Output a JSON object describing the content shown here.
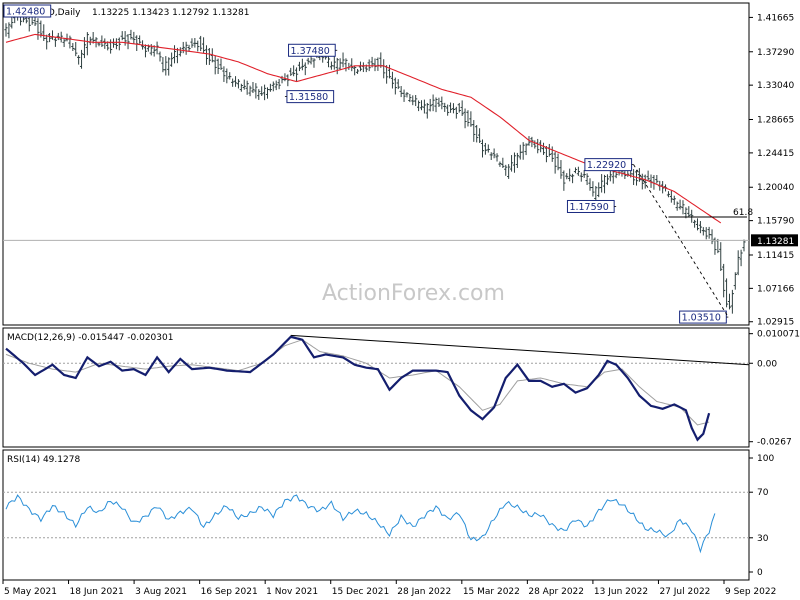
{
  "window": {
    "symbol": "GBPUSD,Daily",
    "ohlc": "1.13225 1.13423 1.12792 1.13281",
    "watermark": "ActionForex.com"
  },
  "chart_data": [
    {
      "type": "candlestick",
      "panel": "price",
      "ylim": [
        1.025,
        1.435
      ],
      "yticks": [
        "1.41665",
        "1.37290",
        "1.33040",
        "1.28665",
        "1.24415",
        "1.20040",
        "1.15790",
        "1.11415",
        "1.07166",
        "1.02915"
      ],
      "current_price": "1.13281",
      "close_path": [
        [
          0,
          1.4
        ],
        [
          1.5,
          1.42
        ],
        [
          3,
          1.415
        ],
        [
          5,
          1.41
        ],
        [
          6.5,
          1.39
        ],
        [
          9,
          1.39
        ],
        [
          11,
          1.385
        ],
        [
          12.5,
          1.36
        ],
        [
          14,
          1.39
        ],
        [
          16,
          1.385
        ],
        [
          18,
          1.38
        ],
        [
          20,
          1.39
        ],
        [
          22,
          1.39
        ],
        [
          24,
          1.375
        ],
        [
          26,
          1.375
        ],
        [
          27,
          1.35
        ],
        [
          29,
          1.37
        ],
        [
          31,
          1.38
        ],
        [
          33,
          1.385
        ],
        [
          35,
          1.365
        ],
        [
          37,
          1.35
        ],
        [
          38,
          1.34
        ],
        [
          40,
          1.33
        ],
        [
          42,
          1.325
        ],
        [
          44,
          1.32
        ],
        [
          46,
          1.33
        ],
        [
          48,
          1.34
        ],
        [
          50,
          1.35
        ],
        [
          52,
          1.36
        ],
        [
          54,
          1.37
        ],
        [
          56,
          1.355
        ],
        [
          58,
          1.36
        ],
        [
          60,
          1.35
        ],
        [
          62,
          1.355
        ],
        [
          64,
          1.36
        ],
        [
          66,
          1.34
        ],
        [
          68,
          1.32
        ],
        [
          70,
          1.31
        ],
        [
          72,
          1.3
        ],
        [
          74,
          1.31
        ],
        [
          76,
          1.3
        ],
        [
          78,
          1.3
        ],
        [
          80,
          1.28
        ],
        [
          82,
          1.25
        ],
        [
          84,
          1.24
        ],
        [
          86,
          1.22
        ],
        [
          88,
          1.24
        ],
        [
          90,
          1.26
        ],
        [
          92,
          1.25
        ],
        [
          94,
          1.24
        ],
        [
          96,
          1.21
        ],
        [
          98,
          1.22
        ],
        [
          100,
          1.21
        ],
        [
          101,
          1.19
        ],
        [
          103,
          1.21
        ],
        [
          105,
          1.22
        ],
        [
          107,
          1.22
        ],
        [
          109,
          1.21
        ],
        [
          111,
          1.21
        ],
        [
          113,
          1.2
        ],
        [
          115,
          1.18
        ],
        [
          117,
          1.17
        ],
        [
          119,
          1.15
        ],
        [
          121,
          1.14
        ],
        [
          122.5,
          1.12
        ],
        [
          123.5,
          1.075
        ],
        [
          124.3,
          1.04
        ],
        [
          125,
          1.07
        ],
        [
          126,
          1.11
        ],
        [
          127,
          1.13
        ]
      ],
      "ma_path": [
        [
          0,
          1.385
        ],
        [
          5,
          1.395
        ],
        [
          10,
          1.39
        ],
        [
          15,
          1.385
        ],
        [
          20,
          1.385
        ],
        [
          25,
          1.38
        ],
        [
          30,
          1.375
        ],
        [
          35,
          1.37
        ],
        [
          40,
          1.36
        ],
        [
          45,
          1.345
        ],
        [
          50,
          1.335
        ],
        [
          55,
          1.345
        ],
        [
          60,
          1.355
        ],
        [
          65,
          1.355
        ],
        [
          70,
          1.34
        ],
        [
          75,
          1.325
        ],
        [
          80,
          1.315
        ],
        [
          85,
          1.29
        ],
        [
          90,
          1.26
        ],
        [
          95,
          1.245
        ],
        [
          100,
          1.23
        ],
        [
          105,
          1.22
        ],
        [
          110,
          1.21
        ],
        [
          115,
          1.195
        ],
        [
          120,
          1.17
        ],
        [
          123,
          1.155
        ]
      ],
      "levels": [
        {
          "label": "1.42480",
          "x": 1,
          "price": 1.4248,
          "pos": "inline"
        },
        {
          "label": "1.37480",
          "x": 57,
          "price": 1.3748,
          "pos": "left"
        },
        {
          "label": "1.31580",
          "x": 48,
          "price": 1.3158,
          "pos": "right"
        },
        {
          "label": "1.22920",
          "x": 108,
          "price": 1.2292,
          "pos": "left"
        },
        {
          "label": "1.17590",
          "x": 105,
          "price": 1.1759,
          "pos": "left"
        },
        {
          "label": "1.03510",
          "x": 124.3,
          "price": 1.0351,
          "pos": "left"
        }
      ],
      "fib_label": "61.8",
      "fib_price": 1.1625,
      "dashed_line": [
        [
          108,
          1.2292
        ],
        [
          124.3,
          1.0351
        ]
      ],
      "x_tick_labels": [
        "5 May 2021",
        "18 Jun 2021",
        "3 Aug 2021",
        "16 Sep 2021",
        "1 Nov 2021",
        "15 Dec 2021",
        "28 Jan 2022",
        "15 Mar 2022",
        "28 Apr 2022",
        "13 Jun 2022",
        "27 Jul 2022",
        "9 Sep 2022"
      ]
    },
    {
      "type": "line",
      "panel": "macd",
      "title": "MACD(12,26,9) -0.015447 -0.020301",
      "ylim": [
        -0.0285,
        0.012
      ],
      "yticks": [
        "0.010071",
        "0.00",
        "-0.0267"
      ],
      "macd_path": [
        [
          0,
          0.005
        ],
        [
          3,
          0.0
        ],
        [
          5,
          -0.004
        ],
        [
          8,
          -0.0005
        ],
        [
          10,
          -0.004
        ],
        [
          12,
          -0.005
        ],
        [
          14,
          0.002
        ],
        [
          16,
          -0.001
        ],
        [
          18,
          0.0005
        ],
        [
          20,
          -0.0025
        ],
        [
          22,
          -0.002
        ],
        [
          24,
          -0.004
        ],
        [
          26,
          0.002
        ],
        [
          28,
          -0.003
        ],
        [
          30,
          0.0015
        ],
        [
          32,
          -0.002
        ],
        [
          35,
          -0.0015
        ],
        [
          38,
          -0.0025
        ],
        [
          42,
          -0.003
        ],
        [
          46,
          0.003
        ],
        [
          49,
          0.009
        ],
        [
          51,
          0.008
        ],
        [
          53,
          0.002
        ],
        [
          55,
          0.003
        ],
        [
          58,
          0.002
        ],
        [
          60,
          -0.0005
        ],
        [
          62,
          -0.0015
        ],
        [
          64,
          -0.002
        ],
        [
          66,
          -0.009
        ],
        [
          68,
          -0.005
        ],
        [
          70,
          -0.0025
        ],
        [
          74,
          -0.0025
        ],
        [
          76,
          -0.003
        ],
        [
          78,
          -0.011
        ],
        [
          80,
          -0.016
        ],
        [
          82,
          -0.019
        ],
        [
          84,
          -0.015
        ],
        [
          86,
          -0.005
        ],
        [
          88,
          -0.0005
        ],
        [
          90,
          -0.006
        ],
        [
          92,
          -0.006
        ],
        [
          94,
          -0.008
        ],
        [
          96,
          -0.007
        ],
        [
          98,
          -0.01
        ],
        [
          100,
          -0.0085
        ],
        [
          102,
          -0.004
        ],
        [
          103.5,
          0.0008
        ],
        [
          105,
          -0.0005
        ],
        [
          107,
          -0.005
        ],
        [
          109,
          -0.011
        ],
        [
          111,
          -0.0145
        ],
        [
          113,
          -0.0155
        ],
        [
          115,
          -0.014
        ],
        [
          117,
          -0.016
        ],
        [
          118,
          -0.022
        ],
        [
          119,
          -0.026
        ],
        [
          120,
          -0.024
        ],
        [
          121,
          -0.017
        ]
      ],
      "signal_path": [
        [
          0,
          0.003
        ],
        [
          4,
          0.0
        ],
        [
          8,
          -0.002
        ],
        [
          12,
          -0.003
        ],
        [
          16,
          0.0
        ],
        [
          20,
          -0.001
        ],
        [
          24,
          -0.002
        ],
        [
          28,
          -0.001
        ],
        [
          32,
          -0.0005
        ],
        [
          36,
          -0.0015
        ],
        [
          40,
          -0.0025
        ],
        [
          44,
          0.0
        ],
        [
          48,
          0.006
        ],
        [
          51,
          0.008
        ],
        [
          54,
          0.004
        ],
        [
          58,
          0.0025
        ],
        [
          62,
          0.0
        ],
        [
          66,
          -0.005
        ],
        [
          70,
          -0.004
        ],
        [
          74,
          -0.0025
        ],
        [
          78,
          -0.008
        ],
        [
          82,
          -0.016
        ],
        [
          85,
          -0.014
        ],
        [
          88,
          -0.006
        ],
        [
          92,
          -0.005
        ],
        [
          96,
          -0.007
        ],
        [
          100,
          -0.008
        ],
        [
          103,
          -0.003
        ],
        [
          106,
          -0.002
        ],
        [
          109,
          -0.008
        ],
        [
          112,
          -0.013
        ],
        [
          116,
          -0.015
        ],
        [
          119,
          -0.021
        ],
        [
          121,
          -0.02
        ]
      ],
      "trendline": [
        [
          49,
          0.0095
        ],
        [
          122,
          -0.0005
        ]
      ]
    },
    {
      "type": "line",
      "panel": "rsi",
      "title": "RSI(14) 49.1278",
      "ylim": [
        0,
        100
      ],
      "yticks": [
        "100",
        "70",
        "30",
        "0"
      ],
      "rsi_path": [
        [
          0,
          55
        ],
        [
          2,
          65
        ],
        [
          4,
          55
        ],
        [
          6,
          48
        ],
        [
          8,
          60
        ],
        [
          10,
          52
        ],
        [
          12,
          40
        ],
        [
          14,
          55
        ],
        [
          16,
          50
        ],
        [
          18,
          62
        ],
        [
          20,
          58
        ],
        [
          22,
          45
        ],
        [
          24,
          50
        ],
        [
          26,
          58
        ],
        [
          28,
          44
        ],
        [
          30,
          50
        ],
        [
          32,
          55
        ],
        [
          34,
          40
        ],
        [
          36,
          52
        ],
        [
          38,
          60
        ],
        [
          40,
          48
        ],
        [
          42,
          50
        ],
        [
          44,
          55
        ],
        [
          46,
          48
        ],
        [
          48,
          62
        ],
        [
          50,
          68
        ],
        [
          52,
          60
        ],
        [
          54,
          55
        ],
        [
          56,
          60
        ],
        [
          58,
          45
        ],
        [
          60,
          52
        ],
        [
          62,
          50
        ],
        [
          64,
          44
        ],
        [
          66,
          35
        ],
        [
          68,
          50
        ],
        [
          70,
          40
        ],
        [
          72,
          48
        ],
        [
          74,
          55
        ],
        [
          76,
          45
        ],
        [
          78,
          52
        ],
        [
          80,
          30
        ],
        [
          82,
          32
        ],
        [
          84,
          48
        ],
        [
          86,
          60
        ],
        [
          88,
          55
        ],
        [
          90,
          48
        ],
        [
          92,
          50
        ],
        [
          94,
          42
        ],
        [
          96,
          38
        ],
        [
          98,
          48
        ],
        [
          100,
          40
        ],
        [
          102,
          52
        ],
        [
          104,
          62
        ],
        [
          106,
          58
        ],
        [
          108,
          50
        ],
        [
          110,
          40
        ],
        [
          112,
          38
        ],
        [
          114,
          32
        ],
        [
          116,
          45
        ],
        [
          118,
          35
        ],
        [
          119.5,
          18
        ],
        [
          121,
          35
        ],
        [
          122,
          50
        ]
      ]
    }
  ]
}
